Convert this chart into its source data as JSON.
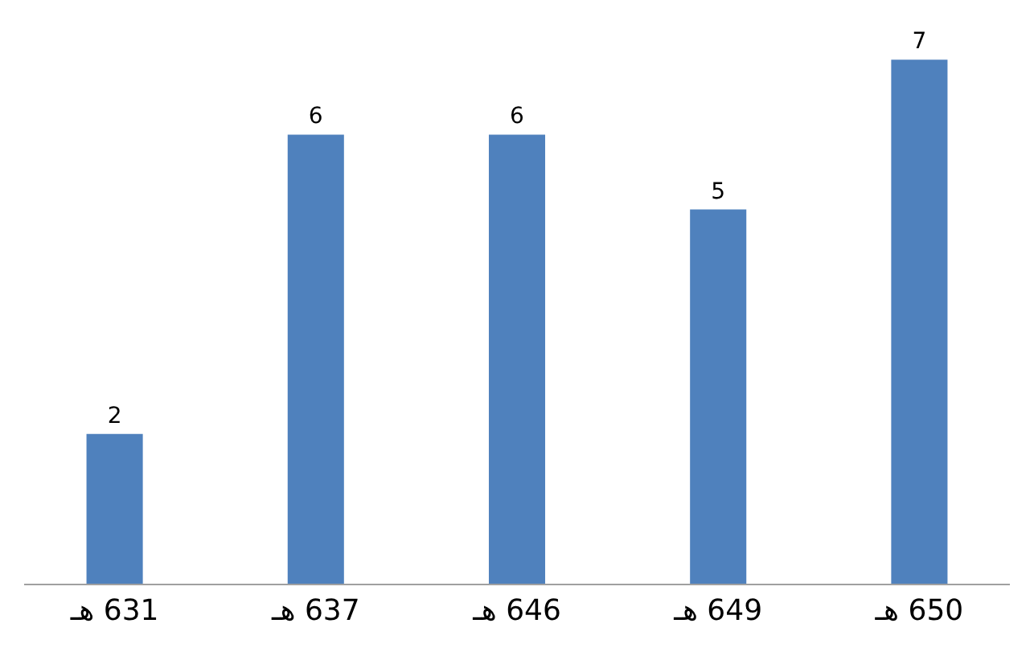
{
  "chart_data": {
    "type": "bar",
    "categories": [
      "631 هـ",
      "637 هـ",
      "646 هـ",
      "649 هـ",
      "650 هـ"
    ],
    "values": [
      2,
      6,
      6,
      5,
      7
    ],
    "color": "#4f81bd",
    "data_labels": true,
    "tick_labels": "x"
  }
}
